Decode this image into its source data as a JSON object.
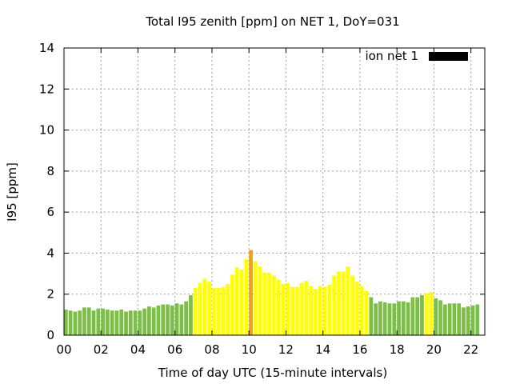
{
  "chart_data": {
    "type": "bar",
    "title": "Total I95 zenith [ppm] on NET 1, DoY=031",
    "xlabel": "Time of day UTC (15-minute intervals)",
    "ylabel": "I95 [ppm]",
    "xlim": [
      0,
      22.75
    ],
    "ylim": [
      0,
      14
    ],
    "x_ticks": [
      "00",
      "02",
      "04",
      "06",
      "08",
      "10",
      "12",
      "14",
      "16",
      "18",
      "20",
      "22"
    ],
    "y_ticks": [
      "0",
      "2",
      "4",
      "6",
      "8",
      "10",
      "12",
      "14"
    ],
    "grid": true,
    "legend": {
      "label": "ion net 1",
      "color": "#000000",
      "placement": "top-right"
    },
    "interval_hours": 0.25,
    "colors": {
      "low": "#7bbf46",
      "moderate": "#ffff00",
      "high": "#f0a020"
    },
    "series": [
      {
        "values": [
          1.25,
          1.2,
          1.15,
          1.2,
          1.35,
          1.35,
          1.2,
          1.3,
          1.3,
          1.25,
          1.2,
          1.2,
          1.25,
          1.15,
          1.2,
          1.2,
          1.2,
          1.3,
          1.4,
          1.35,
          1.45,
          1.5,
          1.5,
          1.45,
          1.55,
          1.5,
          1.65,
          1.95,
          2.3,
          2.55,
          2.75,
          2.6,
          2.3,
          2.3,
          2.35,
          2.5,
          2.95,
          3.3,
          3.2,
          3.7,
          4.15,
          3.6,
          3.35,
          3.05,
          3.05,
          2.9,
          2.7,
          2.5,
          2.55,
          2.35,
          2.35,
          2.55,
          2.65,
          2.4,
          2.25,
          2.4,
          2.35,
          2.45,
          2.9,
          3.1,
          3.1,
          3.35,
          2.9,
          2.6,
          2.4,
          2.15,
          1.85,
          1.55,
          1.65,
          1.6,
          1.55,
          1.55,
          1.65,
          1.65,
          1.6,
          1.85,
          1.85,
          1.95,
          2.05,
          2.1,
          1.8,
          1.7,
          1.5,
          1.55,
          1.55,
          1.55,
          1.35,
          1.4,
          1.45,
          1.5
        ],
        "levels": [
          "low",
          "low",
          "low",
          "low",
          "low",
          "low",
          "low",
          "low",
          "low",
          "low",
          "low",
          "low",
          "low",
          "low",
          "low",
          "low",
          "low",
          "low",
          "low",
          "low",
          "low",
          "low",
          "low",
          "low",
          "low",
          "low",
          "low",
          "low",
          "moderate",
          "moderate",
          "moderate",
          "moderate",
          "moderate",
          "moderate",
          "moderate",
          "moderate",
          "moderate",
          "moderate",
          "moderate",
          "moderate",
          "high",
          "moderate",
          "moderate",
          "moderate",
          "moderate",
          "moderate",
          "moderate",
          "moderate",
          "moderate",
          "moderate",
          "moderate",
          "moderate",
          "moderate",
          "moderate",
          "moderate",
          "moderate",
          "moderate",
          "moderate",
          "moderate",
          "moderate",
          "moderate",
          "moderate",
          "moderate",
          "moderate",
          "moderate",
          "moderate",
          "low",
          "low",
          "low",
          "low",
          "low",
          "low",
          "low",
          "low",
          "low",
          "low",
          "low",
          "low",
          "moderate",
          "moderate",
          "low",
          "low",
          "low",
          "low",
          "low",
          "low",
          "low",
          "low",
          "low",
          "low"
        ]
      }
    ]
  }
}
